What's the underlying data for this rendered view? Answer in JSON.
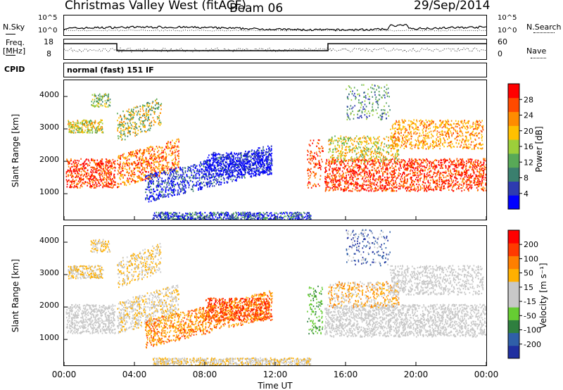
{
  "header": {
    "title": "Christmas Valley West (fitACF)",
    "beam": "Beam 06",
    "date": "29/Sep/2014"
  },
  "top_panels": {
    "nsky_label": "N.Sky",
    "nsky_ticks": [
      "10^5",
      "10^0"
    ],
    "nsearch_label": "N.Search",
    "freq_label": "Freq.",
    "freq_unit": "[MHz]",
    "freq_ticks": [
      "18",
      "8"
    ],
    "nave_ticks": [
      "60",
      "0"
    ],
    "nave_label": "Nave",
    "cpid_label": "CPID",
    "cpid_value": "normal (fast) 151 IF"
  },
  "colors": {
    "power": [
      "#0000ff",
      "#2e3bb0",
      "#3a7f6e",
      "#58a957",
      "#9ccf3a",
      "#ffc000",
      "#ff8c00",
      "#ff4a00",
      "#ff0000"
    ],
    "velocity": [
      "#1f2fa0",
      "#2f5fa8",
      "#2f7f3f",
      "#66cc33",
      "#c8c8c8",
      "#c8c8c8",
      "#ffb000",
      "#ff7f00",
      "#ff3a00",
      "#ff0000"
    ]
  },
  "chart_data": [
    {
      "type": "heatmap",
      "name": "power",
      "ylabel": "Slant Range [km]",
      "yticks": [
        1000,
        2000,
        3000,
        4000
      ],
      "ylim": [
        200,
        4500
      ],
      "xlim": [
        0,
        24
      ],
      "colorbar_label": "Power [dB]",
      "colorbar_ticks": [
        "4",
        "8",
        "12",
        "16",
        "20",
        "24",
        "28"
      ]
    },
    {
      "type": "heatmap",
      "name": "velocity",
      "ylabel": "Slant Range [km]",
      "yticks": [
        1000,
        2000,
        3000,
        4000
      ],
      "ylim": [
        200,
        4500
      ],
      "xlim": [
        0,
        24
      ],
      "colorbar_label": "Velocity [m s⁻¹]",
      "colorbar_ticks": [
        "200",
        "100",
        "50",
        "15",
        "-15",
        "-50",
        "-100",
        "-200"
      ]
    }
  ],
  "xaxis": {
    "ticks": [
      "00:00",
      "04:00",
      "08:00",
      "12:00",
      "16:00",
      "20:00",
      "00:00"
    ],
    "label": "Time UT"
  }
}
